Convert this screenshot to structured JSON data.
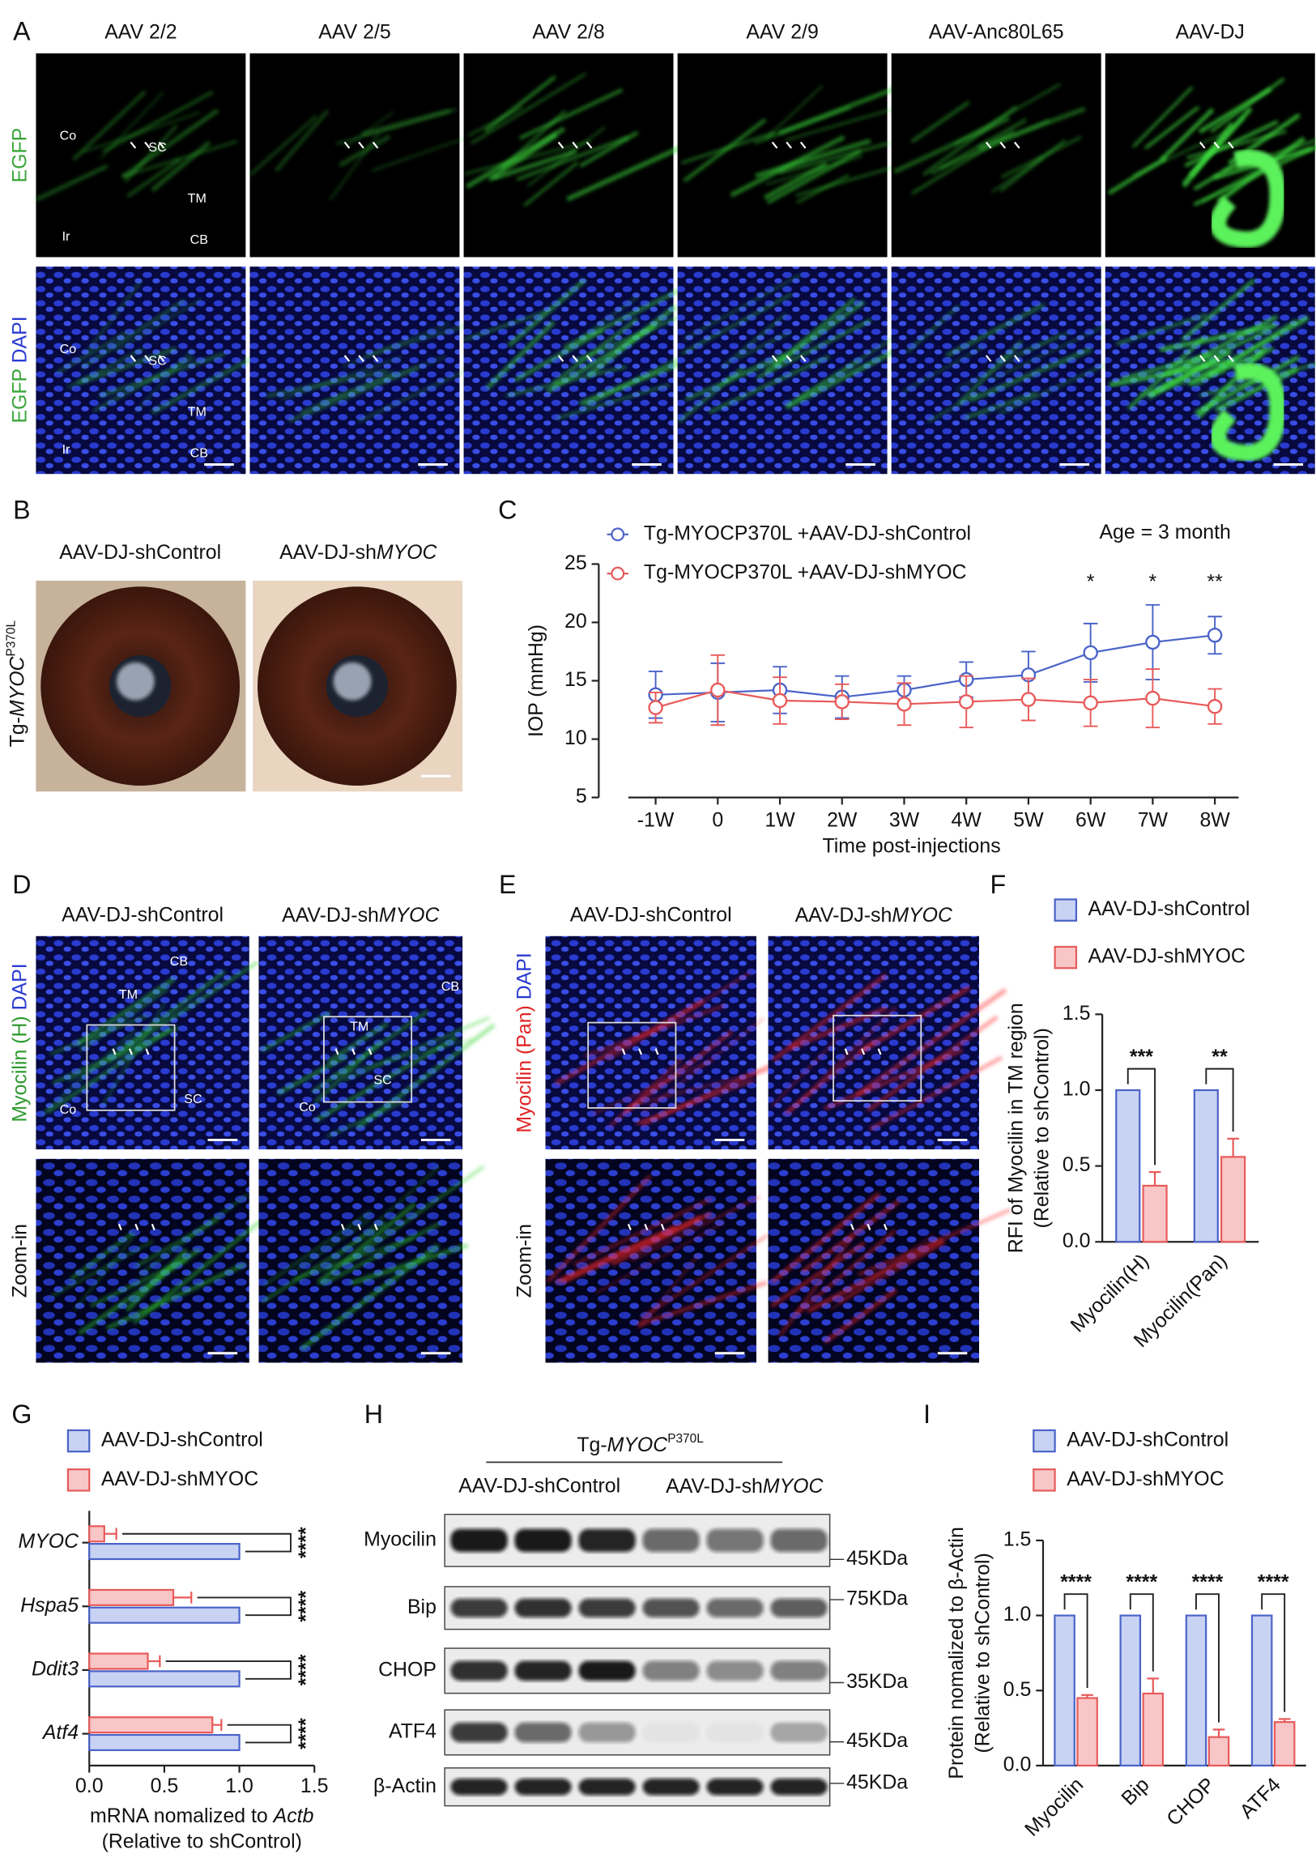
{
  "panel_letters": [
    "A",
    "B",
    "C",
    "D",
    "E",
    "F",
    "G",
    "H",
    "I"
  ],
  "panel_a": {
    "columns": [
      "AAV 2/2",
      "AAV 2/5",
      "AAV 2/8",
      "AAV 2/9",
      "AAV-Anc80L65",
      "AAV-DJ"
    ],
    "rows": [
      [
        {
          "text": "EGFP",
          "color": "#3aa63a"
        }
      ],
      [
        {
          "text": "EGFP ",
          "color": "#3aa63a"
        },
        {
          "text": "DAPI",
          "color": "#2b3bd1"
        }
      ]
    ],
    "tile_labels": [
      "Co",
      "SC",
      "TM",
      "Ir",
      "CB"
    ]
  },
  "panel_b": {
    "columns": [
      "AAV-DJ-shControl",
      [
        {
          "text": "AAV-DJ-sh"
        },
        {
          "text": "MYOC",
          "italic": true
        }
      ]
    ],
    "row_label": [
      {
        "text": "Tg-"
      },
      {
        "text": "MYOC",
        "italic": true
      },
      {
        "text": "P370L",
        "sup": true
      }
    ]
  },
  "panel_d": {
    "columns": [
      "AAV-DJ-shControl",
      [
        {
          "text": "AAV-DJ-sh"
        },
        {
          "text": "MYOC",
          "italic": true
        }
      ]
    ],
    "rows": [
      [
        {
          "text": "Myocilin (H) ",
          "color": "#2f9a2f"
        },
        {
          "text": "DAPI",
          "color": "#2b3bd1"
        }
      ],
      [
        {
          "text": "Zoom-in"
        }
      ]
    ],
    "tile_labels": [
      [
        "CB",
        "TM",
        "SC",
        "Co"
      ],
      [
        "CB",
        "TM",
        "SC",
        "Co"
      ]
    ]
  },
  "panel_e": {
    "columns": [
      "AAV-DJ-shControl",
      [
        {
          "text": "AAV-DJ-sh"
        },
        {
          "text": "MYOC",
          "italic": true
        }
      ]
    ],
    "rows": [
      [
        {
          "text": "Myocilin (Pan) ",
          "color": "#e02424"
        },
        {
          "text": "DAPI",
          "color": "#2b3bd1"
        }
      ],
      [
        {
          "text": "Zoom-in"
        }
      ]
    ]
  },
  "panel_h": {
    "group_label": [
      {
        "text": "Tg-"
      },
      {
        "text": "MYOC",
        "italic": true
      },
      {
        "text": "P370L",
        "sup": true
      }
    ],
    "lanes": [
      "AAV-DJ-shControl",
      [
        {
          "text": "AAV-DJ-sh"
        },
        {
          "text": "MYOC",
          "italic": true
        }
      ]
    ],
    "rows": [
      {
        "label": "Myocilin",
        "marker": "45KDa"
      },
      {
        "label": "Bip",
        "marker": "75KDa"
      },
      {
        "label": "CHOP",
        "marker": "35KDa"
      },
      {
        "label": "ATF4",
        "marker": "45KDa"
      },
      {
        "label": "β-Actin",
        "marker": "45KDa"
      }
    ]
  },
  "chart_data": [
    {
      "type": "line",
      "ylabel": "IOP (mmHg)",
      "xlabel": "Time post-injections",
      "annotation": "Age = 3 month",
      "categories": [
        "-1W",
        "0",
        "1W",
        "2W",
        "3W",
        "4W",
        "5W",
        "6W",
        "7W",
        "8W"
      ],
      "ylim": [
        5,
        25
      ],
      "yticks": [
        5,
        10,
        15,
        20,
        25
      ],
      "series": [
        {
          "name": "Tg-MYOCP370L +AAV-DJ-shControl",
          "color": "#4a63c9",
          "values": [
            13.8,
            14.0,
            14.2,
            13.6,
            14.2,
            15.1,
            15.5,
            17.4,
            18.3,
            18.9
          ],
          "errors": [
            2.0,
            2.5,
            2.0,
            1.8,
            1.2,
            1.5,
            2.0,
            2.5,
            3.2,
            1.6
          ]
        },
        {
          "name": "Tg-MYOCP370L +AAV-DJ-shMYOC",
          "color": "#e85a5a",
          "values": [
            12.7,
            14.2,
            13.3,
            13.2,
            13.0,
            13.2,
            13.4,
            13.1,
            13.5,
            12.8
          ],
          "errors": [
            1.3,
            3.0,
            2.0,
            1.5,
            1.8,
            2.2,
            1.8,
            2.0,
            2.5,
            1.5
          ]
        }
      ],
      "significance": [
        null,
        null,
        null,
        null,
        null,
        null,
        null,
        "*",
        "*",
        "**"
      ]
    },
    {
      "type": "bar",
      "ylabel": [
        "RFI of Myocilin in TM region",
        "(Relative to shControl)"
      ],
      "categories": [
        "Myocilin(H)",
        "Myocilin(Pan)"
      ],
      "ylim": [
        0,
        1.5
      ],
      "yticks": [
        {
          "value": 0,
          "label": "0.0"
        },
        {
          "value": 0.5,
          "label": "0.5"
        },
        {
          "value": 1,
          "label": "1.0"
        },
        {
          "value": 1.5,
          "label": "1.5"
        }
      ],
      "series": [
        {
          "name": "AAV-DJ-shControl",
          "color": "#4a63c9",
          "fill": "#c8d2f3",
          "values": [
            1,
            1
          ]
        },
        {
          "name": "AAV-DJ-shMYOC",
          "color": "#e85a5a",
          "fill": "#f8c6c6",
          "values": [
            0.37,
            0.56
          ],
          "errors": [
            0.09,
            0.12
          ]
        }
      ],
      "significance": [
        "***",
        "**"
      ]
    },
    {
      "type": "hbar",
      "xlabel": [
        [
          {
            "text": "mRNA nomalized to "
          },
          {
            "text": "Actb",
            "italic": true
          }
        ],
        "(Relative to shControl)"
      ],
      "categories": [
        "MYOC",
        "Hspa5",
        "Ddit3",
        "Atf4"
      ],
      "category_italic": true,
      "xlim": [
        0,
        1.5
      ],
      "xticks": [
        {
          "value": 0,
          "label": "0.0"
        },
        {
          "value": 0.5,
          "label": "0.5"
        },
        {
          "value": 1,
          "label": "1.0"
        },
        {
          "value": 1.5,
          "label": "1.5"
        }
      ],
      "series": [
        {
          "name": "AAV-DJ-shControl",
          "color": "#4a63c9",
          "fill": "#c8d2f3",
          "values": [
            1,
            1,
            1,
            1
          ]
        },
        {
          "name": "AAV-DJ-shMYOC",
          "color": "#e85a5a",
          "fill": "#f8c6c6",
          "values": [
            0.1,
            0.56,
            0.39,
            0.82
          ],
          "errors": [
            0.08,
            0.12,
            0.08,
            0.06
          ]
        }
      ],
      "significance": [
        "****",
        "****",
        "****",
        "****"
      ]
    },
    {
      "type": "bar",
      "ylabel": [
        "Protein nomalized to β-Actin",
        "(Relative to shControl)"
      ],
      "categories": [
        "Myocilin",
        "Bip",
        "CHOP",
        "ATF4"
      ],
      "ylim": [
        0,
        1.5
      ],
      "yticks": [
        {
          "value": 0,
          "label": "0.0"
        },
        {
          "value": 0.5,
          "label": "0.5"
        },
        {
          "value": 1,
          "label": "1.0"
        },
        {
          "value": 1.5,
          "label": "1.5"
        }
      ],
      "series": [
        {
          "name": "AAV-DJ-shControl",
          "color": "#4a63c9",
          "fill": "#c8d2f3",
          "values": [
            1,
            1,
            1,
            1
          ]
        },
        {
          "name": "AAV-DJ-shMYOC",
          "color": "#e85a5a",
          "fill": "#f8c6c6",
          "values": [
            0.45,
            0.48,
            0.19,
            0.29
          ],
          "errors": [
            0.02,
            0.1,
            0.05,
            0.02
          ]
        }
      ],
      "significance": [
        "****",
        "****",
        "****",
        "****"
      ]
    }
  ]
}
